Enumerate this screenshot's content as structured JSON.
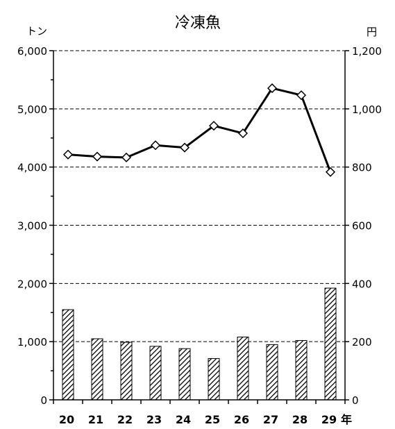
{
  "chart_data": {
    "type": "bar+line",
    "title": "冷凍魚",
    "left_unit": "トン",
    "right_unit": "円",
    "x_unit": "年",
    "categories": [
      "20",
      "21",
      "22",
      "23",
      "24",
      "25",
      "26",
      "27",
      "28",
      "29"
    ],
    "left_axis": {
      "min": 0,
      "max": 6000,
      "ticks": [
        "0",
        "1,000",
        "2,000",
        "3,000",
        "4,000",
        "5,000",
        "6,000"
      ]
    },
    "right_axis": {
      "min": 0,
      "max": 1200,
      "ticks": [
        "0",
        "200",
        "400",
        "600",
        "800",
        "1,000",
        "1,200"
      ]
    },
    "series": [
      {
        "type": "bar",
        "axis": "left",
        "values": [
          1550,
          1050,
          990,
          920,
          880,
          710,
          1080,
          950,
          1020,
          1920
        ]
      },
      {
        "type": "line",
        "axis": "right",
        "values": [
          843,
          836,
          833,
          875,
          867,
          942,
          916,
          1071,
          1047,
          783
        ]
      }
    ],
    "grid": "horizontal dashed",
    "colors": {
      "bars": "hatched black/white",
      "line": "#000000",
      "markers": "#ffffff"
    }
  }
}
